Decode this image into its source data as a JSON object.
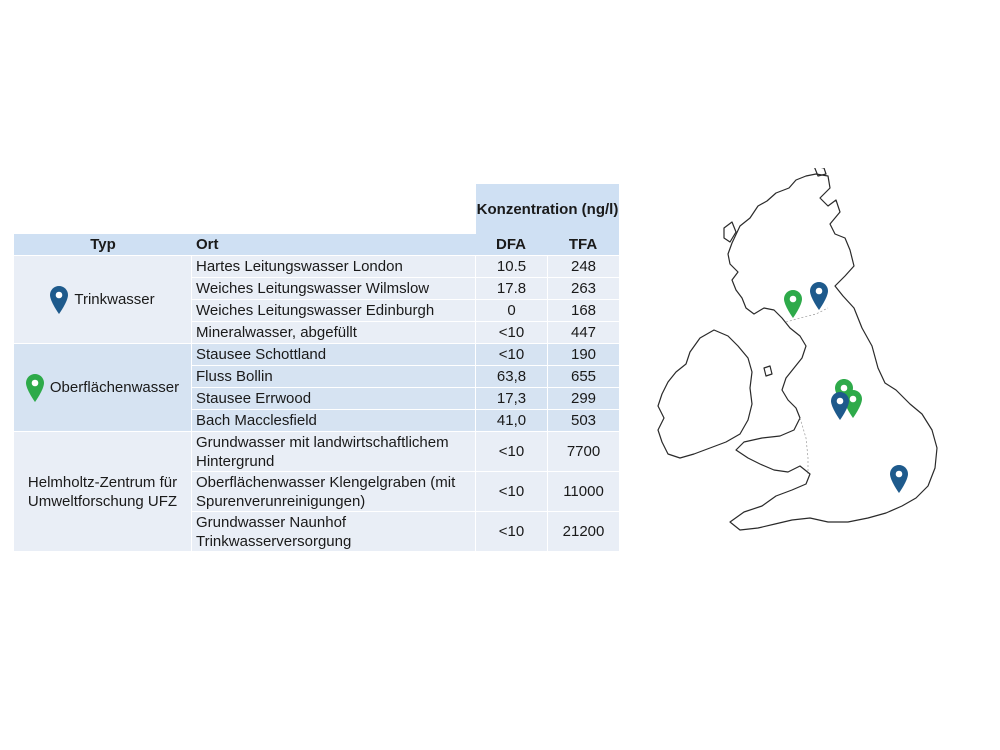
{
  "colors": {
    "header": "#cfe0f3",
    "row_light": "#e9eef6",
    "row_medium": "#d6e3f2",
    "pin_blue": "#1e5a8c",
    "pin_green": "#2eaa4a"
  },
  "table": {
    "concentration_header": "Konzentration (ng/l)",
    "columns": {
      "typ": "Typ",
      "ort": "Ort",
      "dfa": "DFA",
      "tfa": "TFA"
    },
    "groups": [
      {
        "typ": "Trinkwasser",
        "icon": "blue-map-pin-icon",
        "rows": [
          {
            "ort": "Hartes Leitungswasser London",
            "dfa": "10.5",
            "tfa": "248"
          },
          {
            "ort": "Weiches Leitungswasser Wilmslow",
            "dfa": "17.8",
            "tfa": "263"
          },
          {
            "ort": "Weiches Leitungswasser Edinburgh",
            "dfa": "0",
            "tfa": "168"
          },
          {
            "ort": "Mineralwasser, abgefüllt",
            "dfa": "<10",
            "tfa": "447"
          }
        ]
      },
      {
        "typ": "Oberflächenwasser",
        "icon": "green-map-pin-icon",
        "rows": [
          {
            "ort": "Stausee Schottland",
            "dfa": "<10",
            "tfa": "190"
          },
          {
            "ort": "Fluss Bollin",
            "dfa": "63,8",
            "tfa": "655"
          },
          {
            "ort": "Stausee Errwood",
            "dfa": "17,3",
            "tfa": "299"
          },
          {
            "ort": "Bach Macclesfield",
            "dfa": "41,0",
            "tfa": "503"
          }
        ]
      },
      {
        "typ": "Helmholtz-Zentrum für Umweltforschung UFZ",
        "rows": [
          {
            "ort": "Grundwasser mit landwirtschaftlichem Hintergrund",
            "dfa": "<10",
            "tfa": "7700"
          },
          {
            "ort": "Oberflächenwasser Klengelgraben (mit Spurenverunreinigungen)",
            "dfa": "<10",
            "tfa": "11000"
          },
          {
            "ort": "Grundwasser Naunhof Trinkwasserversorgung",
            "dfa": "<10",
            "tfa": "21200"
          }
        ]
      }
    ]
  },
  "map": {
    "pins": [
      {
        "color": "green",
        "icon": "green-map-pin-icon"
      },
      {
        "color": "blue",
        "icon": "blue-map-pin-icon"
      },
      {
        "color": "green",
        "icon": "green-map-pin-icon"
      },
      {
        "color": "green",
        "icon": "green-map-pin-icon"
      },
      {
        "color": "blue",
        "icon": "blue-map-pin-icon"
      },
      {
        "color": "blue",
        "icon": "blue-map-pin-icon"
      }
    ]
  }
}
